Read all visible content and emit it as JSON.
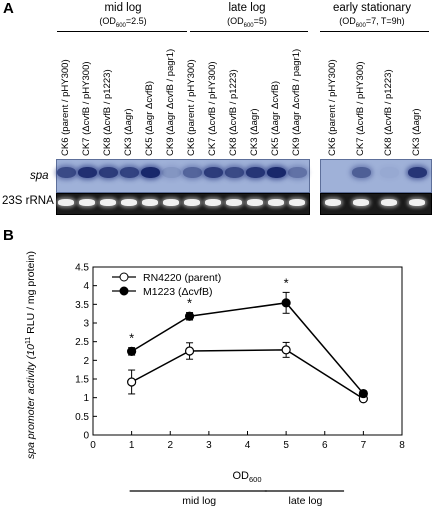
{
  "panel_a": {
    "letter": "A",
    "groups": [
      {
        "title": "mid log",
        "subtitle_pre": "(OD",
        "subtitle_sub": "600",
        "subtitle_post": "=2.5)"
      },
      {
        "title": "late log",
        "subtitle_pre": "(OD",
        "subtitle_sub": "600",
        "subtitle_post": "=5)"
      },
      {
        "title": "early stationary",
        "subtitle_pre": "(OD",
        "subtitle_sub": "600",
        "subtitle_post": "=7, T=9h)"
      }
    ],
    "lanes": [
      "CK6 (parent / pHY300)",
      "CK7 (ΔcvfB / pHY300)",
      "CK8 (ΔcvfB / p1223)",
      "CK3 (Δagr)",
      "CK5 (Δagr ΔcvfB)",
      "CK9 (Δagr ΔcvfB / pagr1)",
      "CK6 (parent / pHY300)",
      "CK7 (ΔcvfB / pHY300)",
      "CK8 (ΔcvfB / p1223)",
      "CK3 (Δagr)",
      "CK5 (Δagr ΔcvfB)",
      "CK9 (Δagr ΔcvfB / pagr1)",
      "CK6 (parent / pHY300)",
      "CK7 (ΔcvfB / pHY300)",
      "CK8 (ΔcvfB / p1223)",
      "CK3 (Δagr)"
    ],
    "spa_intensity": [
      0.75,
      0.95,
      0.85,
      0.8,
      1.0,
      0.2,
      0.55,
      0.85,
      0.75,
      0.9,
      1.0,
      0.45,
      0.0,
      0.6,
      0.05,
      0.9
    ],
    "row_labels": {
      "spa": "spa",
      "rrna": "23S rRNA"
    }
  },
  "panel_b": {
    "letter": "B"
  },
  "chart_data": {
    "type": "line",
    "ylabel_pre": "spa promoter activity (10",
    "ylabel_sup": "11",
    "ylabel_post": " RLU / mg protein)",
    "xlabel_pre": "OD",
    "xlabel_sub": "600",
    "xlim": [
      0,
      8
    ],
    "ylim": [
      0,
      4.5
    ],
    "xticks": [
      "0",
      "1",
      "2",
      "3",
      "4",
      "5",
      "6",
      "7",
      "8"
    ],
    "yticks": [
      "0",
      "0.5",
      "1",
      "1.5",
      "2",
      "2.5",
      "3",
      "3.5",
      "4",
      "4.5"
    ],
    "series": [
      {
        "name": "RN4220 (parent)",
        "marker": "open-circle",
        "x": [
          1,
          2.5,
          5,
          7
        ],
        "y": [
          1.42,
          2.25,
          2.28,
          0.97
        ],
        "err": [
          0.32,
          0.22,
          0.2,
          0.04
        ]
      },
      {
        "name": "M1223 (ΔcvfB)",
        "marker": "filled-circle",
        "x": [
          1,
          2.5,
          5,
          7
        ],
        "y": [
          2.24,
          3.18,
          3.54,
          1.11
        ],
        "err": [
          0.1,
          0.1,
          0.28,
          0.05
        ]
      }
    ],
    "significance": [
      {
        "x": 1,
        "label": "*"
      },
      {
        "x": 2.5,
        "label": "*"
      },
      {
        "x": 5,
        "label": "*"
      }
    ],
    "phases": [
      {
        "label": "mid log",
        "from": 1,
        "to": 4.5
      },
      {
        "label": "late log",
        "from": 4.5,
        "to": 6.5
      }
    ],
    "legend_position": "top-left"
  }
}
